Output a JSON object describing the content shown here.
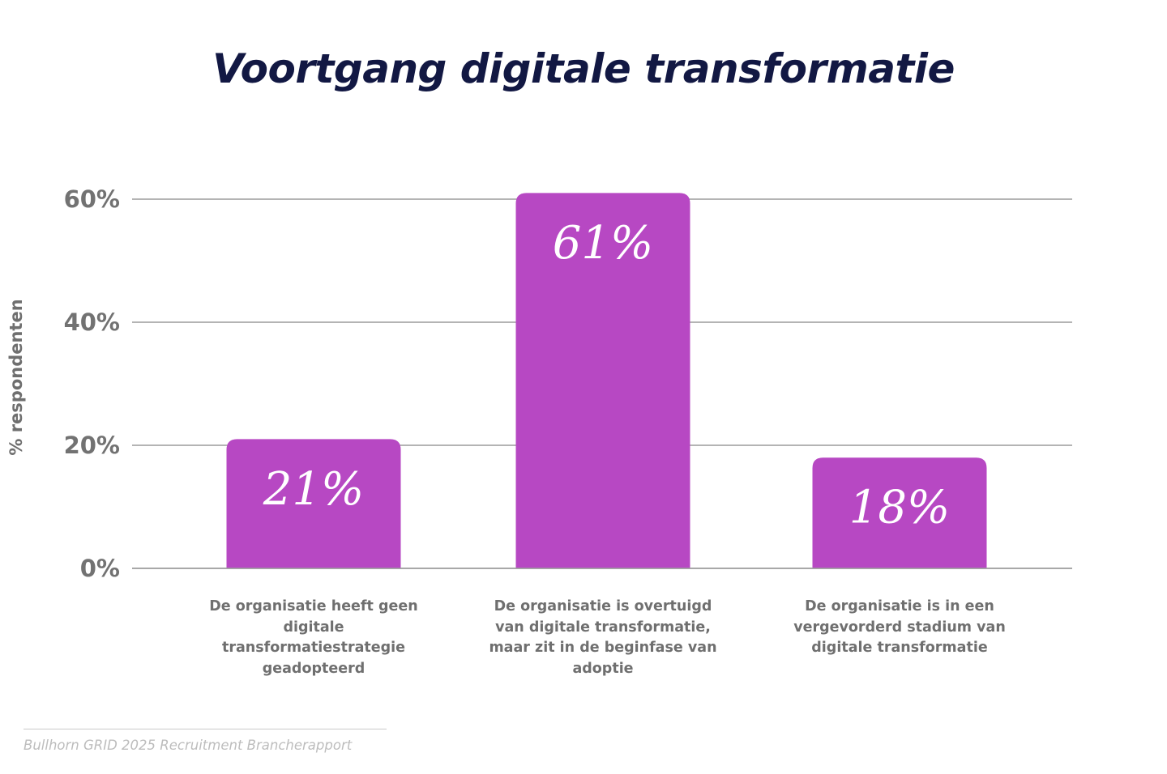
{
  "colors": {
    "title": "#121843",
    "bar": "#b748c3",
    "axis_text": "#727272",
    "grid": "#9c9c9c"
  },
  "chart_data": {
    "type": "bar",
    "title": "Voortgang digitale transformatie",
    "ylabel": "% respondenten",
    "xlabel": "",
    "ylim": [
      0,
      60
    ],
    "yticks": [
      {
        "value": 0,
        "label": "0%"
      },
      {
        "value": 20,
        "label": "20%"
      },
      {
        "value": 40,
        "label": "40%"
      },
      {
        "value": 60,
        "label": "60%"
      }
    ],
    "grid": true,
    "categories": [
      "De organisatie heeft geen digitale transformatiestrategie geadopteerd",
      "De organisatie is overtuigd van digitale transformatie, maar zit in de beginfase van adoptie",
      "De organisatie is in een vergevorderd stadium van digitale transformatie"
    ],
    "values": [
      21,
      61,
      18
    ],
    "value_labels": [
      "21%",
      "61%",
      "18%"
    ]
  },
  "source": "Bullhorn GRID 2025 Recruitment Brancherapport"
}
